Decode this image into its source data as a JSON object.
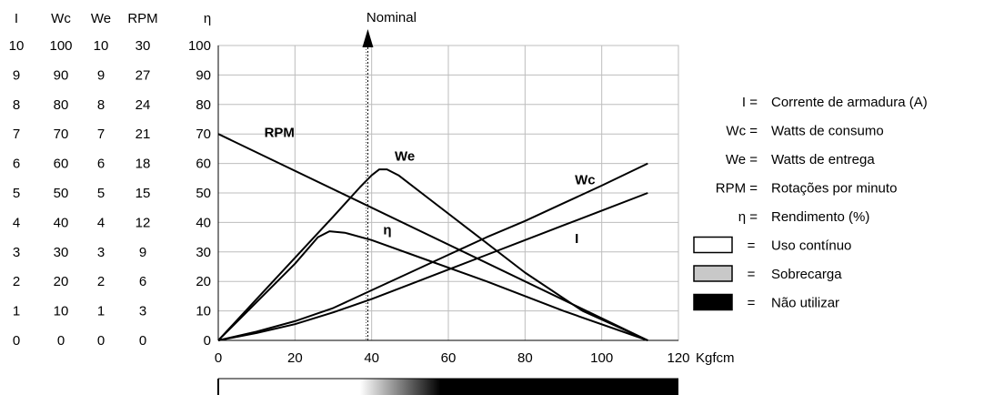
{
  "chart_data": {
    "type": "line",
    "xlabel": "Kgfcm",
    "xlim": [
      0,
      120
    ],
    "xticks": [
      "0",
      "20",
      "40",
      "60",
      "80",
      "100",
      "120"
    ],
    "ylim": [
      0,
      100
    ],
    "grid": true,
    "nominal_marker": {
      "label": "Nominal",
      "x": 39
    },
    "y_axis_columns": [
      {
        "header": "I",
        "ticks": [
          "0",
          "1",
          "2",
          "3",
          "4",
          "5",
          "6",
          "7",
          "8",
          "9",
          "10"
        ]
      },
      {
        "header": "Wc",
        "ticks": [
          "0",
          "10",
          "20",
          "30",
          "40",
          "50",
          "60",
          "70",
          "80",
          "90",
          "100"
        ]
      },
      {
        "header": "We",
        "ticks": [
          "0",
          "1",
          "2",
          "3",
          "4",
          "5",
          "6",
          "7",
          "8",
          "9",
          "10"
        ]
      },
      {
        "header": "RPM",
        "ticks": [
          "0",
          "3",
          "6",
          "9",
          "12",
          "15",
          "18",
          "21",
          "24",
          "27",
          "30"
        ]
      },
      {
        "header": "η",
        "ticks": [
          "0",
          "10",
          "20",
          "30",
          "40",
          "50",
          "60",
          "70",
          "80",
          "90",
          "100"
        ]
      }
    ],
    "series": [
      {
        "name": "RPM",
        "label_pos": [
          12,
          69
        ],
        "points": [
          [
            0,
            70
          ],
          [
            112,
            0
          ]
        ]
      },
      {
        "name": "We",
        "label_pos": [
          46,
          61
        ],
        "points": [
          [
            0,
            0
          ],
          [
            10,
            14
          ],
          [
            20,
            28
          ],
          [
            30,
            42
          ],
          [
            37,
            52
          ],
          [
            40,
            56
          ],
          [
            42,
            58
          ],
          [
            44,
            58
          ],
          [
            47,
            56
          ],
          [
            55,
            48
          ],
          [
            65,
            38
          ],
          [
            80,
            23
          ],
          [
            95,
            10
          ],
          [
            112,
            0
          ]
        ]
      },
      {
        "name": "η",
        "label_pos": [
          43,
          36
        ],
        "points": [
          [
            0,
            0
          ],
          [
            10,
            13
          ],
          [
            20,
            26
          ],
          [
            26,
            35
          ],
          [
            29,
            37
          ],
          [
            33,
            36.5
          ],
          [
            40,
            34
          ],
          [
            55,
            27
          ],
          [
            70,
            20
          ],
          [
            90,
            10
          ],
          [
            112,
            0
          ]
        ]
      },
      {
        "name": "Wc",
        "label_pos": [
          93,
          53
        ],
        "points": [
          [
            0,
            0
          ],
          [
            10,
            3
          ],
          [
            20,
            6.5
          ],
          [
            30,
            11
          ],
          [
            40,
            17
          ],
          [
            50,
            23
          ],
          [
            60,
            29
          ],
          [
            70,
            35
          ],
          [
            80,
            40.5
          ],
          [
            90,
            46.5
          ],
          [
            100,
            52.5
          ],
          [
            112,
            60
          ]
        ]
      },
      {
        "name": "I",
        "label_pos": [
          93,
          33
        ],
        "points": [
          [
            0,
            0
          ],
          [
            10,
            2.5
          ],
          [
            20,
            5.5
          ],
          [
            30,
            9.5
          ],
          [
            40,
            14
          ],
          [
            50,
            19
          ],
          [
            60,
            24
          ],
          [
            70,
            29
          ],
          [
            80,
            34
          ],
          [
            90,
            39
          ],
          [
            100,
            44
          ],
          [
            112,
            50
          ]
        ]
      }
    ],
    "usage_bar": {
      "continuous_until": 37,
      "transition_end": 58,
      "x_end": 120
    }
  },
  "legend": [
    {
      "symbol": "I =",
      "text": "Corrente de armadura (A)"
    },
    {
      "symbol": "Wc =",
      "text": "Watts de consumo"
    },
    {
      "symbol": "We =",
      "text": "Watts de entrega"
    },
    {
      "symbol": "RPM =",
      "text": "Rotações por minuto"
    },
    {
      "symbol": "η =",
      "text": "Rendimento (%)"
    }
  ],
  "swatches": [
    {
      "color": "#ffffff",
      "text": "Uso contínuo",
      "eq": "="
    },
    {
      "color": "#c8c8c8",
      "text": "Sobrecarga",
      "eq": "="
    },
    {
      "color": "#000000",
      "text": "Não utilizar",
      "eq": "="
    }
  ]
}
